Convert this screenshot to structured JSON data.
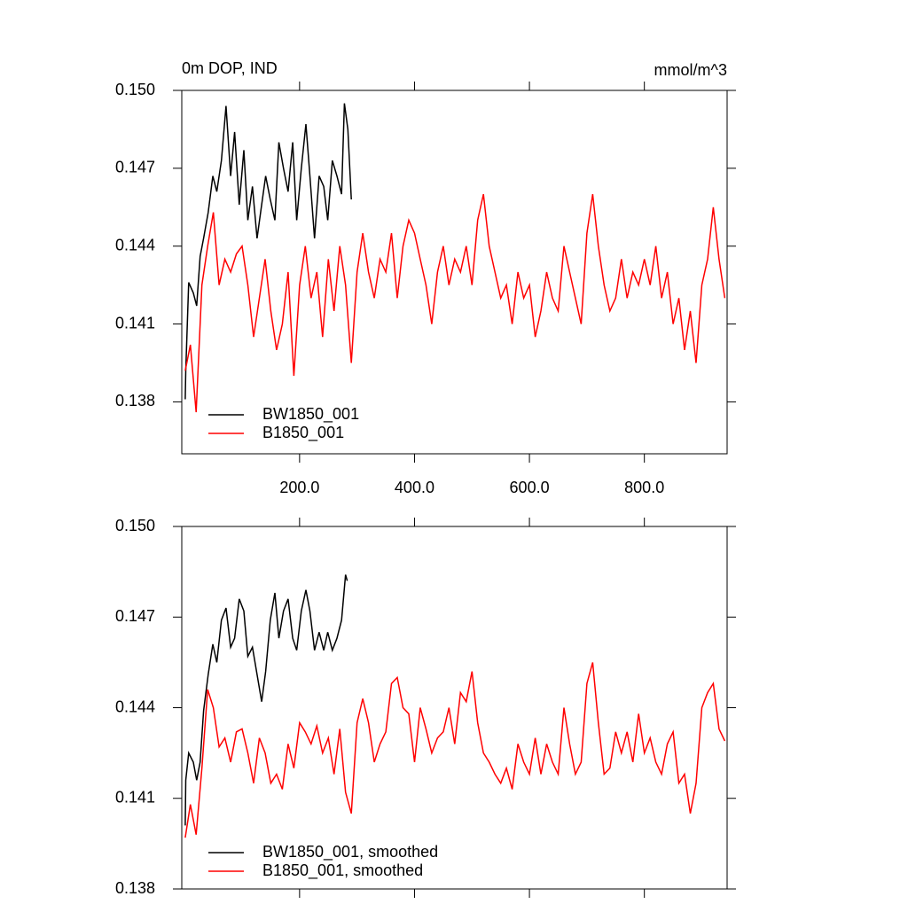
{
  "chart_data": [
    {
      "type": "line",
      "title": "0m DOP, IND",
      "units": "mmol/m^3",
      "xlim": [
        -5,
        944
      ],
      "xticks": [
        {
          "value": 200,
          "label": "200.0"
        },
        {
          "value": 400,
          "label": "400.0"
        },
        {
          "value": 600,
          "label": "600.0"
        },
        {
          "value": 800,
          "label": "800.0"
        }
      ],
      "ylim": [
        0.136,
        0.15
      ],
      "yticks": [
        0.138,
        0.141,
        0.144,
        0.147,
        {
          "value": 0.15,
          "label": "0.150"
        }
      ],
      "legend": "lower left",
      "series": [
        {
          "name": "BW1850_001",
          "color": "#000000",
          "x": [
            1,
            2,
            7,
            15,
            21,
            27,
            33,
            41,
            49,
            56,
            64,
            72,
            80,
            87,
            95,
            103,
            110,
            118,
            126,
            134,
            141,
            149,
            157,
            164,
            172,
            180,
            188,
            195,
            203,
            211,
            218,
            226,
            234,
            242,
            249,
            257,
            265,
            273,
            278,
            284,
            290
          ],
          "values": [
            0.1381,
            0.1392,
            0.1426,
            0.1422,
            0.1417,
            0.1436,
            0.1443,
            0.1453,
            0.1467,
            0.1461,
            0.1473,
            0.1494,
            0.1467,
            0.1484,
            0.1456,
            0.1477,
            0.145,
            0.1463,
            0.1443,
            0.1456,
            0.1467,
            0.1458,
            0.145,
            0.148,
            0.147,
            0.1461,
            0.148,
            0.145,
            0.147,
            0.1487,
            0.1467,
            0.1443,
            0.1467,
            0.1463,
            0.145,
            0.1473,
            0.1467,
            0.146,
            0.1495,
            0.1485,
            0.1458
          ]
        },
        {
          "name": "B1850_001",
          "color": "#ff0000",
          "x": [
            1,
            10,
            20,
            30,
            40,
            50,
            60,
            70,
            80,
            90,
            100,
            110,
            120,
            130,
            140,
            150,
            160,
            170,
            180,
            190,
            200,
            210,
            220,
            230,
            240,
            250,
            260,
            270,
            280,
            290,
            300,
            310,
            320,
            330,
            340,
            350,
            360,
            370,
            380,
            390,
            400,
            410,
            420,
            430,
            440,
            450,
            460,
            470,
            480,
            490,
            500,
            510,
            520,
            530,
            540,
            550,
            560,
            570,
            580,
            590,
            600,
            610,
            620,
            630,
            640,
            650,
            660,
            670,
            680,
            690,
            700,
            710,
            720,
            730,
            740,
            750,
            760,
            770,
            780,
            790,
            800,
            810,
            820,
            830,
            840,
            850,
            860,
            870,
            880,
            890,
            900,
            910,
            920,
            930,
            940
          ],
          "values": [
            0.1392,
            0.1402,
            0.1376,
            0.1425,
            0.144,
            0.1453,
            0.1425,
            0.1435,
            0.143,
            0.1437,
            0.144,
            0.1425,
            0.1405,
            0.142,
            0.1435,
            0.1415,
            0.14,
            0.141,
            0.143,
            0.139,
            0.1425,
            0.144,
            0.142,
            0.143,
            0.1405,
            0.1435,
            0.1415,
            0.144,
            0.1425,
            0.1395,
            0.143,
            0.1445,
            0.143,
            0.142,
            0.1435,
            0.143,
            0.1445,
            0.142,
            0.144,
            0.145,
            0.1445,
            0.1435,
            0.1425,
            0.141,
            0.143,
            0.144,
            0.1425,
            0.1435,
            0.143,
            0.144,
            0.1425,
            0.145,
            0.146,
            0.144,
            0.143,
            0.142,
            0.1425,
            0.141,
            0.143,
            0.142,
            0.1425,
            0.1405,
            0.1415,
            0.143,
            0.142,
            0.1415,
            0.144,
            0.143,
            0.142,
            0.141,
            0.1445,
            0.146,
            0.144,
            0.1425,
            0.1415,
            0.142,
            0.1435,
            0.142,
            0.143,
            0.1425,
            0.1435,
            0.1425,
            0.144,
            0.142,
            0.143,
            0.141,
            0.142,
            0.14,
            0.1415,
            0.1395,
            0.1425,
            0.1435,
            0.1455,
            0.1435,
            0.142
          ]
        }
      ]
    },
    {
      "type": "line",
      "xlim": [
        -5,
        944
      ],
      "xticks": [
        200,
        400,
        600,
        800
      ],
      "ylim": [
        0.138,
        0.15
      ],
      "yticks": [
        {
          "value": 0.138,
          "label": "0.138"
        },
        0.141,
        0.144,
        0.147,
        {
          "value": 0.15,
          "label": "0.150"
        }
      ],
      "legend": "lower left",
      "series": [
        {
          "name": "BW1850_001, smoothed",
          "color": "#000000",
          "x": [
            1,
            2,
            7,
            15,
            21,
            27,
            33,
            41,
            49,
            56,
            64,
            72,
            80,
            87,
            95,
            103,
            110,
            118,
            126,
            134,
            141,
            149,
            157,
            164,
            172,
            180,
            188,
            195,
            203,
            211,
            218,
            226,
            234,
            242,
            249,
            257,
            265,
            273,
            280,
            283
          ],
          "values": [
            0.1401,
            0.1416,
            0.1425,
            0.1422,
            0.1416,
            0.1422,
            0.1439,
            0.1451,
            0.1461,
            0.1455,
            0.1469,
            0.1473,
            0.146,
            0.1463,
            0.1476,
            0.1472,
            0.1457,
            0.146,
            0.1451,
            0.1442,
            0.1452,
            0.1469,
            0.1478,
            0.1463,
            0.1472,
            0.1476,
            0.1463,
            0.1459,
            0.1472,
            0.1479,
            0.1472,
            0.1459,
            0.1465,
            0.1459,
            0.1465,
            0.1459,
            0.1463,
            0.1469,
            0.1484,
            0.1482
          ]
        },
        {
          "name": "B1850_001, smoothed",
          "color": "#ff0000",
          "x": [
            1,
            10,
            20,
            30,
            40,
            50,
            60,
            70,
            80,
            90,
            100,
            110,
            120,
            130,
            140,
            150,
            160,
            170,
            180,
            190,
            200,
            210,
            220,
            230,
            240,
            250,
            260,
            270,
            280,
            290,
            300,
            310,
            320,
            330,
            340,
            350,
            360,
            370,
            380,
            390,
            400,
            410,
            420,
            430,
            440,
            450,
            460,
            470,
            480,
            490,
            500,
            510,
            520,
            530,
            540,
            550,
            560,
            570,
            580,
            590,
            600,
            610,
            620,
            630,
            640,
            650,
            660,
            670,
            680,
            690,
            700,
            710,
            720,
            730,
            740,
            750,
            760,
            770,
            780,
            790,
            800,
            810,
            820,
            830,
            840,
            850,
            860,
            870,
            880,
            890,
            900,
            910,
            920,
            930,
            940
          ],
          "values": [
            0.1397,
            0.1408,
            0.1398,
            0.142,
            0.1446,
            0.144,
            0.1427,
            0.143,
            0.1422,
            0.1432,
            0.1433,
            0.1425,
            0.1415,
            0.143,
            0.1425,
            0.1415,
            0.1418,
            0.1413,
            0.1428,
            0.142,
            0.1435,
            0.1432,
            0.1428,
            0.1434,
            0.1425,
            0.143,
            0.1418,
            0.1433,
            0.1412,
            0.1405,
            0.1435,
            0.1443,
            0.1435,
            0.1422,
            0.1428,
            0.1432,
            0.1448,
            0.145,
            0.144,
            0.1438,
            0.1422,
            0.144,
            0.1433,
            0.1425,
            0.143,
            0.1432,
            0.144,
            0.1428,
            0.1445,
            0.1442,
            0.1452,
            0.1435,
            0.1425,
            0.1422,
            0.1418,
            0.1415,
            0.142,
            0.1413,
            0.1428,
            0.1422,
            0.1418,
            0.143,
            0.1418,
            0.1428,
            0.1422,
            0.1418,
            0.144,
            0.1428,
            0.1418,
            0.1422,
            0.1448,
            0.1455,
            0.1435,
            0.1418,
            0.142,
            0.1432,
            0.1425,
            0.1432,
            0.1422,
            0.1438,
            0.1425,
            0.143,
            0.1422,
            0.1418,
            0.1428,
            0.1432,
            0.1415,
            0.1418,
            0.1405,
            0.1415,
            0.144,
            0.1445,
            0.1448,
            0.1433,
            0.1429
          ]
        }
      ]
    }
  ]
}
